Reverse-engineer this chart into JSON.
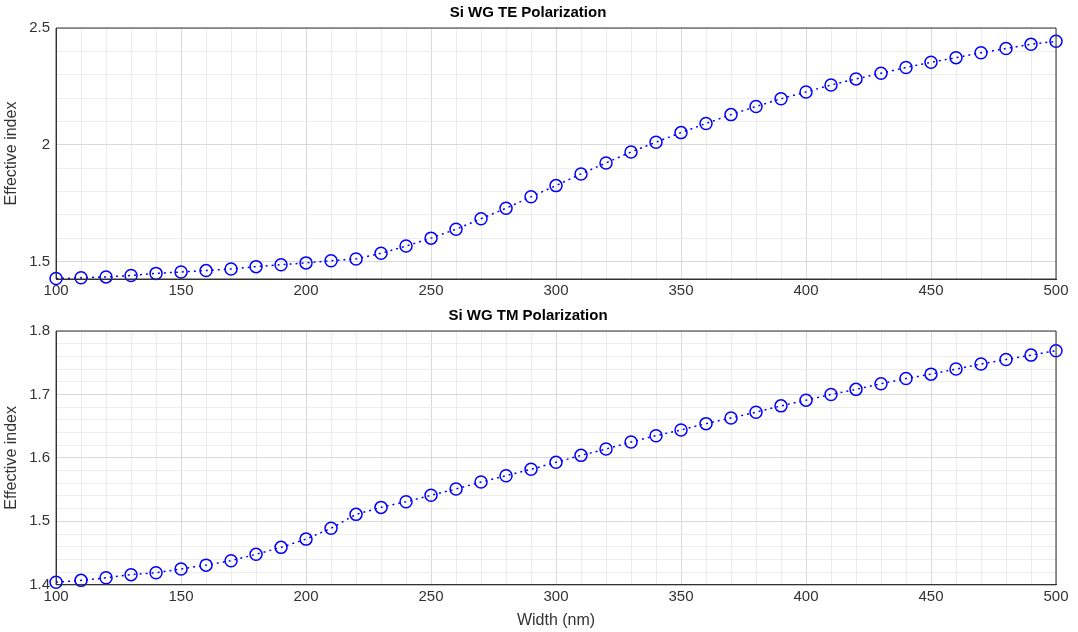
{
  "chart_data": [
    {
      "type": "line",
      "title": "Si WG TE Polarization",
      "ylabel": "Effective index",
      "marker": "circle",
      "line_style": "dotted",
      "grid": true,
      "x": [
        100,
        110,
        120,
        130,
        140,
        150,
        160,
        170,
        180,
        190,
        200,
        210,
        220,
        230,
        240,
        250,
        260,
        270,
        280,
        290,
        300,
        310,
        320,
        330,
        340,
        350,
        360,
        370,
        380,
        390,
        400,
        410,
        420,
        430,
        440,
        450,
        460,
        470,
        480,
        490,
        500
      ],
      "series": [
        {
          "color": "#0000ff",
          "values": [
            1.427,
            1.43,
            1.434,
            1.44,
            1.449,
            1.455,
            1.461,
            1.468,
            1.478,
            1.486,
            1.494,
            1.503,
            1.511,
            1.535,
            1.566,
            1.6,
            1.638,
            1.683,
            1.728,
            1.777,
            1.825,
            1.875,
            1.922,
            1.969,
            2.011,
            2.052,
            2.091,
            2.129,
            2.164,
            2.197,
            2.226,
            2.256,
            2.282,
            2.306,
            2.331,
            2.353,
            2.373,
            2.394,
            2.412,
            2.43,
            2.443
          ]
        }
      ],
      "xlim": [
        100,
        500
      ],
      "ylim": [
        1.425,
        2.5
      ],
      "xticks": [
        100,
        {
          "value": 110,
          "label": null
        },
        {
          "value": 120,
          "label": null
        },
        {
          "value": 130,
          "label": null
        },
        {
          "value": 140,
          "label": null
        },
        150,
        {
          "value": 160,
          "label": null
        },
        {
          "value": 170,
          "label": null
        },
        {
          "value": 180,
          "label": null
        },
        {
          "value": 190,
          "label": null
        },
        200,
        {
          "value": 210,
          "label": null
        },
        {
          "value": 220,
          "label": null
        },
        {
          "value": 230,
          "label": null
        },
        {
          "value": 240,
          "label": null
        },
        250,
        {
          "value": 260,
          "label": null
        },
        {
          "value": 270,
          "label": null
        },
        {
          "value": 280,
          "label": null
        },
        {
          "value": 290,
          "label": null
        },
        300,
        {
          "value": 310,
          "label": null
        },
        {
          "value": 320,
          "label": null
        },
        {
          "value": 330,
          "label": null
        },
        {
          "value": 340,
          "label": null
        },
        350,
        {
          "value": 360,
          "label": null
        },
        {
          "value": 370,
          "label": null
        },
        {
          "value": 380,
          "label": null
        },
        {
          "value": 390,
          "label": null
        },
        400,
        {
          "value": 410,
          "label": null
        },
        {
          "value": 420,
          "label": null
        },
        {
          "value": 430,
          "label": null
        },
        {
          "value": 440,
          "label": null
        },
        450,
        {
          "value": 460,
          "label": null
        },
        {
          "value": 470,
          "label": null
        },
        {
          "value": 480,
          "label": null
        },
        {
          "value": 490,
          "label": null
        },
        500
      ],
      "yticks": [
        1.5,
        {
          "value": 1.6,
          "label": null
        },
        {
          "value": 1.7,
          "label": null
        },
        {
          "value": 1.8,
          "label": null
        },
        {
          "value": 1.9,
          "label": null
        },
        2,
        {
          "value": 2.1,
          "label": null
        },
        {
          "value": 2.2,
          "label": null
        },
        {
          "value": 2.3,
          "label": null
        },
        {
          "value": 2.4,
          "label": null
        },
        2.5
      ]
    },
    {
      "type": "line",
      "title": "Si WG TM Polarization",
      "xlabel": "Width (nm)",
      "ylabel": "Effective index",
      "marker": "circle",
      "line_style": "dotted",
      "grid": true,
      "x": [
        100,
        110,
        120,
        130,
        140,
        150,
        160,
        170,
        180,
        190,
        200,
        210,
        220,
        230,
        240,
        250,
        260,
        270,
        280,
        290,
        300,
        310,
        320,
        330,
        340,
        350,
        360,
        370,
        380,
        390,
        400,
        410,
        420,
        430,
        440,
        450,
        460,
        470,
        480,
        490,
        500
      ],
      "series": [
        {
          "color": "#0000ff",
          "values": [
            1.404,
            1.407,
            1.411,
            1.416,
            1.419,
            1.425,
            1.431,
            1.438,
            1.448,
            1.459,
            1.472,
            1.489,
            1.511,
            1.522,
            1.531,
            1.541,
            1.551,
            1.562,
            1.572,
            1.582,
            1.593,
            1.604,
            1.614,
            1.625,
            1.635,
            1.644,
            1.654,
            1.663,
            1.672,
            1.682,
            1.691,
            1.7,
            1.708,
            1.717,
            1.725,
            1.732,
            1.74,
            1.748,
            1.755,
            1.762,
            1.769
          ]
        }
      ],
      "xlim": [
        100,
        500
      ],
      "ylim": [
        1.4,
        1.8
      ],
      "xticks": [
        100,
        {
          "value": 110,
          "label": null
        },
        {
          "value": 120,
          "label": null
        },
        {
          "value": 130,
          "label": null
        },
        {
          "value": 140,
          "label": null
        },
        150,
        {
          "value": 160,
          "label": null
        },
        {
          "value": 170,
          "label": null
        },
        {
          "value": 180,
          "label": null
        },
        {
          "value": 190,
          "label": null
        },
        200,
        {
          "value": 210,
          "label": null
        },
        {
          "value": 220,
          "label": null
        },
        {
          "value": 230,
          "label": null
        },
        {
          "value": 240,
          "label": null
        },
        250,
        {
          "value": 260,
          "label": null
        },
        {
          "value": 270,
          "label": null
        },
        {
          "value": 280,
          "label": null
        },
        {
          "value": 290,
          "label": null
        },
        300,
        {
          "value": 310,
          "label": null
        },
        {
          "value": 320,
          "label": null
        },
        {
          "value": 330,
          "label": null
        },
        {
          "value": 340,
          "label": null
        },
        350,
        {
          "value": 360,
          "label": null
        },
        {
          "value": 370,
          "label": null
        },
        {
          "value": 380,
          "label": null
        },
        {
          "value": 390,
          "label": null
        },
        400,
        {
          "value": 410,
          "label": null
        },
        {
          "value": 420,
          "label": null
        },
        {
          "value": 430,
          "label": null
        },
        {
          "value": 440,
          "label": null
        },
        450,
        {
          "value": 460,
          "label": null
        },
        {
          "value": 470,
          "label": null
        },
        {
          "value": 480,
          "label": null
        },
        {
          "value": 490,
          "label": null
        },
        500
      ],
      "yticks": [
        1.4,
        {
          "value": 1.42,
          "label": null
        },
        {
          "value": 1.44,
          "label": null
        },
        {
          "value": 1.46,
          "label": null
        },
        {
          "value": 1.48,
          "label": null
        },
        1.5,
        {
          "value": 1.52,
          "label": null
        },
        {
          "value": 1.54,
          "label": null
        },
        {
          "value": 1.56,
          "label": null
        },
        {
          "value": 1.58,
          "label": null
        },
        1.6,
        {
          "value": 1.62,
          "label": null
        },
        {
          "value": 1.64,
          "label": null
        },
        {
          "value": 1.66,
          "label": null
        },
        {
          "value": 1.68,
          "label": null
        },
        1.7,
        {
          "value": 1.72,
          "label": null
        },
        {
          "value": 1.74,
          "label": null
        },
        {
          "value": 1.76,
          "label": null
        },
        {
          "value": 1.78,
          "label": null
        },
        1.8
      ]
    }
  ]
}
